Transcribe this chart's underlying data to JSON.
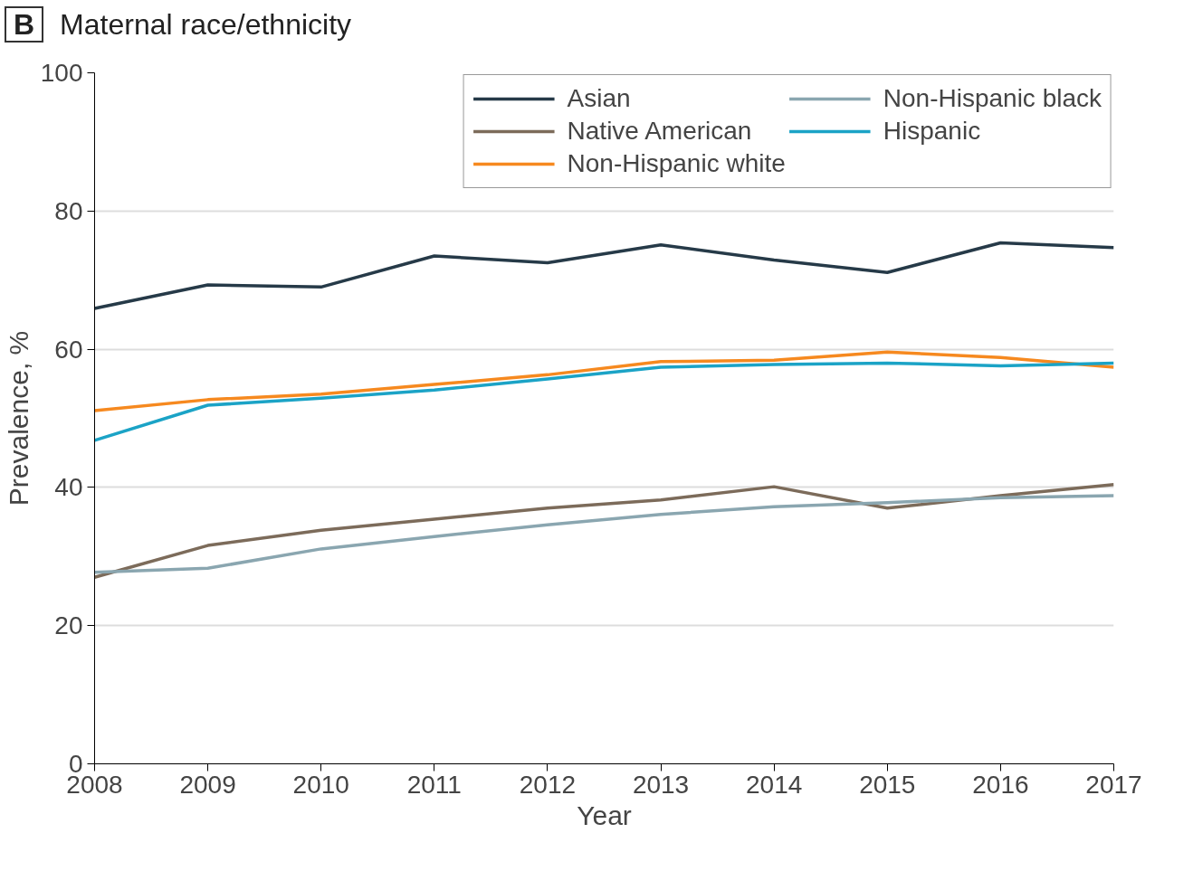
{
  "chart_data": {
    "type": "line",
    "title": "Maternal race/ethnicity",
    "annotations": [
      "B"
    ],
    "xlabel": "Year",
    "ylabel": "Prevalence, %",
    "x": [
      2008,
      2009,
      2010,
      2011,
      2012,
      2013,
      2014,
      2015,
      2016,
      2017
    ],
    "series": [
      {
        "name": "Asian",
        "color": "#263a48",
        "values": [
          65.9,
          69.3,
          69.0,
          73.5,
          72.5,
          75.1,
          72.9,
          71.1,
          75.4,
          74.7
        ]
      },
      {
        "name": "Native American",
        "color": "#7c6b5a",
        "values": [
          27.0,
          31.6,
          33.8,
          35.4,
          37.0,
          38.2,
          40.1,
          37.0,
          38.8,
          40.4
        ]
      },
      {
        "name": "Non-Hispanic white",
        "color": "#f6891f",
        "values": [
          51.1,
          52.7,
          53.5,
          54.9,
          56.3,
          58.2,
          58.4,
          59.6,
          58.8,
          57.4
        ]
      },
      {
        "name": "Non-Hispanic black",
        "color": "#8aa6b0",
        "values": [
          27.7,
          28.3,
          31.1,
          32.9,
          34.6,
          36.1,
          37.2,
          37.8,
          38.5,
          38.8
        ]
      },
      {
        "name": "Hispanic",
        "color": "#1ba3c6",
        "values": [
          46.8,
          51.9,
          52.9,
          54.1,
          55.7,
          57.4,
          57.8,
          58.0,
          57.6,
          58.0
        ]
      }
    ],
    "xlim": [
      2008,
      2017
    ],
    "xticks": [
      2008,
      2009,
      2010,
      2011,
      2012,
      2013,
      2014,
      2015,
      2016,
      2017
    ],
    "ylim": [
      0,
      100
    ],
    "yticks": [
      0,
      20,
      40,
      60,
      80,
      100
    ],
    "grid": "y",
    "legend": "top right",
    "line_style": "solid"
  }
}
